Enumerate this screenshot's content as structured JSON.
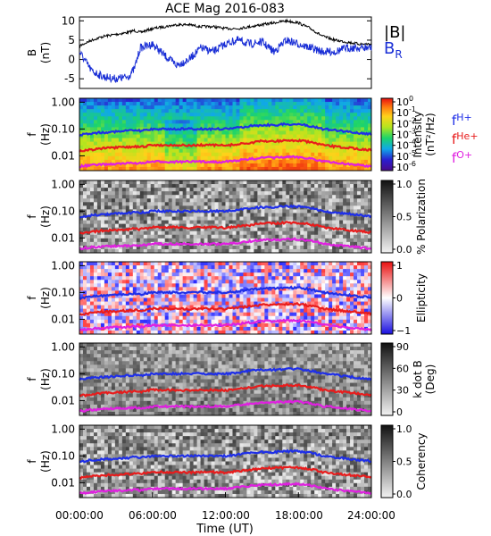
{
  "title": "ACE Mag 2016-083",
  "time_axis": {
    "ticks": [
      "00:00:00",
      "06:00:00",
      "12:00:00",
      "18:00:00",
      "24:00:00"
    ],
    "label": "Time (UT)",
    "range_hours": [
      0,
      24
    ]
  },
  "colors": {
    "B_total": "#000000",
    "B_R": "#1a2fd6",
    "f_H": "#1f2fe8",
    "f_He": "#e81c1c",
    "f_O": "#e020e0"
  },
  "freq_ticks": [
    "1.00",
    "0.10",
    "0.01"
  ],
  "freq_label": [
    "f",
    "(Hz)"
  ],
  "chart_data": [
    {
      "type": "line",
      "ylabel": [
        "B",
        "(nT)"
      ],
      "ylim": [
        -7.5,
        11
      ],
      "yticks": [
        10,
        5,
        0,
        -5
      ],
      "x_hours": [
        0,
        1,
        2,
        3,
        4,
        4.5,
        5,
        6,
        7,
        8,
        9,
        10,
        11,
        12,
        13,
        14,
        15,
        16,
        17,
        18,
        19,
        20,
        21,
        22,
        23,
        24
      ],
      "series": [
        {
          "name": "|B|",
          "values": [
            3.5,
            5,
            6,
            6.5,
            7,
            7.5,
            7,
            8,
            8.5,
            9,
            9,
            8.5,
            8.5,
            8,
            8,
            8.5,
            9,
            9.5,
            10,
            9.5,
            8,
            6,
            5,
            4.5,
            4,
            4
          ]
        },
        {
          "name": "B_R",
          "label_main": "B",
          "label_sub": "R",
          "values": [
            2,
            -3,
            -4.5,
            -5,
            -4.5,
            -2.5,
            3,
            4,
            1,
            -1.5,
            0,
            3,
            2,
            4,
            5,
            4,
            4.5,
            2,
            5,
            4,
            3,
            2,
            2,
            3,
            3,
            3
          ]
        }
      ]
    },
    {
      "type": "heatmap",
      "colorbar_label": [
        "Intensity",
        "(nT²/Hz)"
      ],
      "colorbar_ticks": [
        {
          "base": "10",
          "exp": "0"
        },
        {
          "base": "10",
          "exp": "-1"
        },
        {
          "base": "10",
          "exp": "-2"
        },
        {
          "base": "10",
          "exp": "-3"
        },
        {
          "base": "10",
          "exp": "-4"
        },
        {
          "base": "10",
          "exp": "-5"
        },
        {
          "base": "10",
          "exp": "-6"
        }
      ],
      "legend": [
        {
          "main": "f",
          "sub": "H+"
        },
        {
          "main": "f",
          "sub": "He+"
        },
        {
          "main": "f",
          "sub": "O+"
        }
      ]
    },
    {
      "type": "heatmap",
      "colorbar_label": [
        "% Polarization"
      ],
      "colorbar_ticks": [
        "1.0",
        "0.5",
        "0.0"
      ]
    },
    {
      "type": "heatmap",
      "colorbar_label": [
        "Ellipticity"
      ],
      "colorbar_ticks": [
        "1",
        "0",
        "−1"
      ]
    },
    {
      "type": "heatmap",
      "colorbar_label": [
        "k dot B",
        "(Deg)"
      ],
      "colorbar_ticks": [
        "90",
        "60",
        "30",
        "0"
      ]
    },
    {
      "type": "heatmap",
      "colorbar_label": [
        "Coherency"
      ],
      "colorbar_ticks": [
        "1.0",
        "0.5",
        "0.0"
      ]
    }
  ],
  "gyrofrequency_lines": {
    "x_hours": [
      0,
      1,
      2,
      3,
      4,
      4.5,
      5,
      6,
      7,
      8,
      9,
      10,
      11,
      12,
      13,
      14,
      15,
      16,
      17,
      18,
      19,
      20,
      21,
      22,
      23,
      24
    ],
    "f_H_Hz": [
      0.06,
      0.07,
      0.075,
      0.08,
      0.085,
      0.09,
      0.085,
      0.1,
      0.1,
      0.1,
      0.1,
      0.1,
      0.1,
      0.1,
      0.11,
      0.13,
      0.14,
      0.14,
      0.15,
      0.15,
      0.13,
      0.1,
      0.09,
      0.08,
      0.07,
      0.065
    ],
    "f_He_Hz": [
      0.015,
      0.017,
      0.019,
      0.02,
      0.021,
      0.022,
      0.021,
      0.025,
      0.025,
      0.025,
      0.024,
      0.025,
      0.025,
      0.024,
      0.027,
      0.03,
      0.035,
      0.035,
      0.037,
      0.037,
      0.032,
      0.025,
      0.022,
      0.02,
      0.018,
      0.016
    ],
    "f_O_Hz": [
      0.004,
      0.0045,
      0.0048,
      0.005,
      0.0052,
      0.0055,
      0.0052,
      0.006,
      0.006,
      0.006,
      0.006,
      0.006,
      0.006,
      0.006,
      0.0067,
      0.0075,
      0.0085,
      0.0085,
      0.009,
      0.009,
      0.008,
      0.0062,
      0.0055,
      0.005,
      0.0045,
      0.004
    ]
  }
}
